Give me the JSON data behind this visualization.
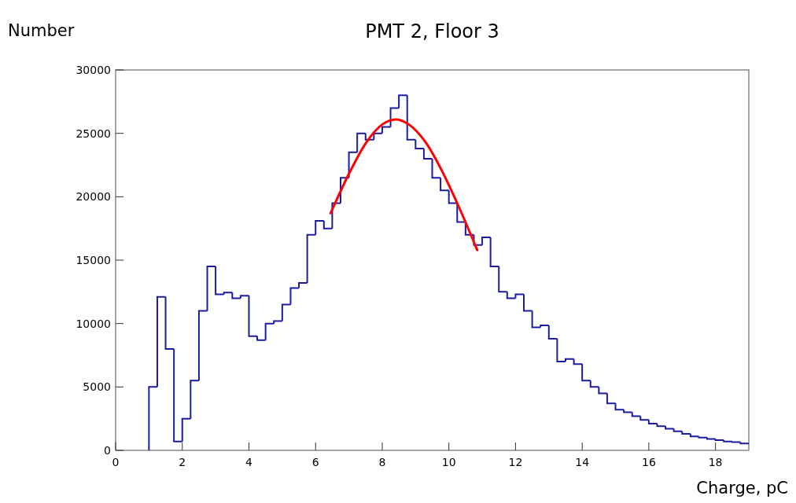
{
  "chart_data": {
    "type": "histogram",
    "title": "PMT 2, Floor 3",
    "xlabel": "Charge, pC",
    "ylabel": "Number",
    "xlim": [
      0,
      19
    ],
    "ylim": [
      0,
      30000
    ],
    "xticks": [
      0,
      2,
      4,
      6,
      8,
      10,
      12,
      14,
      16,
      18
    ],
    "yticks": [
      0,
      5000,
      10000,
      15000,
      20000,
      25000,
      30000
    ],
    "grid": false,
    "series": [
      {
        "color": "#1c1ca0",
        "bins": [
          1,
          1.25,
          1.5,
          1.75,
          2,
          2.25,
          2.5,
          2.75,
          3,
          3.25,
          3.5,
          3.75,
          4,
          4.25,
          4.5,
          4.75,
          5,
          5.25,
          5.5,
          5.75,
          6,
          6.25,
          6.5,
          6.75,
          7,
          7.25,
          7.5,
          7.75,
          8,
          8.25,
          8.5,
          8.75,
          9,
          9.25,
          9.5,
          9.75,
          10,
          10.25,
          10.5,
          10.75,
          11,
          11.25,
          11.5,
          11.75,
          12,
          12.25,
          12.5,
          12.75,
          13,
          13.25,
          13.5,
          13.75,
          14,
          14.25,
          14.5,
          14.75,
          15,
          15.25,
          15.5,
          15.75,
          16,
          16.25,
          16.5,
          16.75,
          17,
          17.25,
          17.5,
          17.75,
          18,
          18.25,
          18.5,
          18.75,
          19
        ],
        "values": [
          5000,
          12100,
          8000,
          700,
          2500,
          5500,
          11000,
          14500,
          12300,
          12450,
          12000,
          12200,
          9000,
          8700,
          10000,
          10200,
          11500,
          12800,
          13200,
          17000,
          18100,
          17500,
          19500,
          21500,
          23500,
          25000,
          24500,
          25000,
          25500,
          27000,
          28000,
          24500,
          23800,
          23000,
          21500,
          20500,
          19500,
          18000,
          17000,
          16200,
          16800,
          14500,
          12500,
          12000,
          12300,
          11000,
          9700,
          9850,
          8800,
          7000,
          7200,
          6800,
          5500,
          5000,
          4500,
          3700,
          3200,
          3000,
          2700,
          2400,
          2100,
          1900,
          1700,
          1500,
          1300,
          1100,
          1000,
          900,
          800,
          700,
          650,
          550
        ]
      },
      {
        "type": "line",
        "color": "#ff0000",
        "x": [
          6.45,
          7,
          7.5,
          8,
          8.4,
          8.8,
          9.3,
          9.8,
          10.3,
          10.85
        ],
        "values": [
          18700,
          21800,
          24200,
          25700,
          26100,
          25700,
          24300,
          22000,
          19200,
          15800
        ]
      }
    ]
  }
}
